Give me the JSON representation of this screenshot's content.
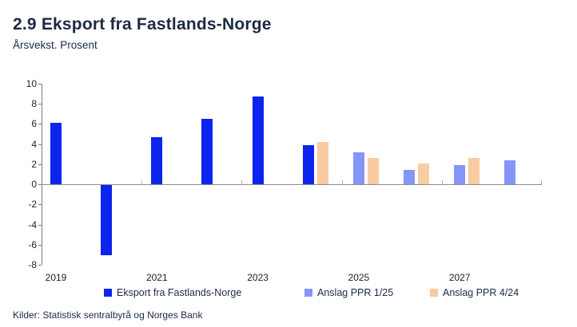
{
  "header": {
    "title": "2.9 Eksport fra Fastlands-Norge",
    "subtitle": "Årsvekst. Prosent"
  },
  "footer": {
    "source": "Kilder: Statistisk sentralbyrå og Norges Bank"
  },
  "colors": {
    "actual_blue": "#0d23ee",
    "forecast_periwinkle": "#8695f8",
    "forecast_peach": "#f8cba3",
    "text_navy": "#1c2a44",
    "axis_gray": "#8c8c8c"
  },
  "chart_data": {
    "type": "bar",
    "title": "2.9 Eksport fra Fastlands-Norge",
    "subtitle": "Årsvekst. Prosent",
    "xlabel": "",
    "ylabel": "",
    "ylim": [
      -8,
      10
    ],
    "ytick_step": 2,
    "ytick_labels": [
      "10",
      "8",
      "6",
      "4",
      "2",
      "0",
      "-2",
      "-4",
      "-6",
      "-8"
    ],
    "x": [
      2019,
      2020,
      2021,
      2022,
      2023,
      2024,
      2025,
      2026,
      2027,
      2028
    ],
    "xtick_labels": [
      "2019",
      "2021",
      "2023",
      "2025",
      "2027"
    ],
    "xtick_label_years": [
      2019,
      2021,
      2023,
      2025,
      2027
    ],
    "grid": false,
    "legend_position": "bottom",
    "series": [
      {
        "name": "Eksport fra Fastlands-Norge",
        "color": "#0d23ee",
        "values": [
          6.1,
          -7.0,
          4.7,
          6.5,
          8.7,
          3.9,
          null,
          null,
          null,
          null
        ]
      },
      {
        "name": "Anslag PPR 1/25",
        "color": "#8695f8",
        "values": [
          null,
          null,
          null,
          null,
          null,
          null,
          3.2,
          1.4,
          1.9,
          2.4
        ]
      },
      {
        "name": "Anslag PPR 4/24",
        "color": "#f8cba3",
        "values": [
          null,
          null,
          null,
          null,
          null,
          4.2,
          2.6,
          2.1,
          2.6,
          null
        ]
      }
    ]
  }
}
